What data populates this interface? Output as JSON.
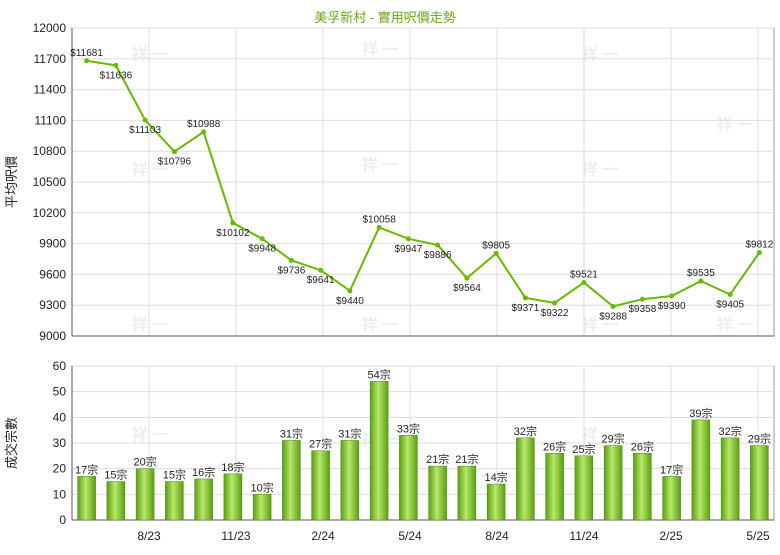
{
  "chart_data": [
    {
      "type": "line",
      "title": "美孚新村 - 實用呎價走勢",
      "ylabel": "平均呎價",
      "ylim": [
        9000,
        12000
      ],
      "yticks": [
        9000,
        9300,
        9600,
        9900,
        10200,
        10500,
        10800,
        11100,
        11400,
        11700,
        12000
      ],
      "grid": true,
      "color": "#66bb00",
      "values": [
        11681,
        11636,
        11103,
        10796,
        10988,
        10102,
        9948,
        9736,
        9641,
        9440,
        10058,
        9947,
        9886,
        9564,
        9805,
        9371,
        9322,
        9521,
        9288,
        9358,
        9390,
        9535,
        9405,
        9812
      ],
      "value_labels": [
        "$11681",
        "$11636",
        "$11103",
        "$10796",
        "$10988",
        "$10102",
        "$9948",
        "$9736",
        "$9641",
        "$9440",
        "$10058",
        "$9947",
        "$9886",
        "$9564",
        "$9805",
        "$9371",
        "$9322",
        "$9521",
        "$9288",
        "$9358",
        "$9390",
        "$9535",
        "$9405",
        "$9812"
      ]
    },
    {
      "type": "bar",
      "ylabel": "成交宗數",
      "ylim": [
        0,
        60
      ],
      "yticks": [
        0,
        10,
        20,
        30,
        40,
        50,
        60
      ],
      "grid": true,
      "color": "#88cc22",
      "values": [
        17,
        15,
        20,
        15,
        16,
        18,
        10,
        31,
        27,
        31,
        54,
        33,
        21,
        21,
        14,
        32,
        26,
        25,
        29,
        26,
        17,
        39,
        32,
        29
      ],
      "value_labels": [
        "17宗",
        "15宗",
        "20宗",
        "15宗",
        "16宗",
        "18宗",
        "10宗",
        "31宗",
        "27宗",
        "31宗",
        "54宗",
        "33宗",
        "21宗",
        "21宗",
        "14宗",
        "32宗",
        "26宗",
        "25宗",
        "29宗",
        "26宗",
        "17宗",
        "39宗",
        "32宗",
        "29宗"
      ],
      "xtick_labels": [
        "8/23",
        "11/23",
        "2/24",
        "5/24",
        "8/24",
        "11/24",
        "2/25",
        "5/25"
      ]
    }
  ],
  "watermark": "祥 一"
}
